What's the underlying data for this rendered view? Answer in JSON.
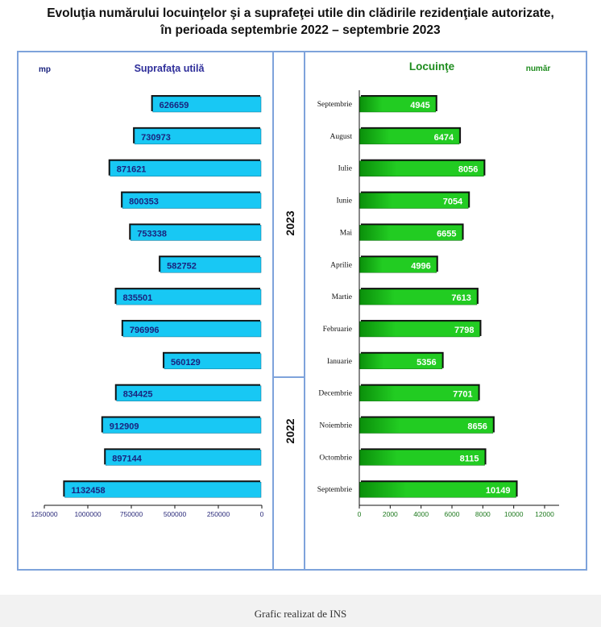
{
  "title": {
    "line1": "Evoluţia numărului locuinţelor şi a suprafeţei utile din clădirile rezidenţiale autorizate,",
    "line2": "în perioada septembrie 2022 – septembrie 2023"
  },
  "caption": "Grafic realizat de INS",
  "colors": {
    "frame": "#7ea3db",
    "cyan_bar": "#18c8f4",
    "green_bar": "#22cc22",
    "green_dark": "#0a8f0a",
    "shadow": "#111111",
    "area_value_text": "#1a237e",
    "area_title": "#2e2e9a",
    "green_title": "#1e8c1e",
    "dwelling_value_text": "#ffffff",
    "year_text": "#111111"
  },
  "chart_data": [
    {
      "type": "bar",
      "orientation": "horizontal-reversed",
      "title": "Suprafaţa utilă",
      "unit_label": "mp",
      "categories": [
        "Septembrie",
        "August",
        "Iulie",
        "Iunie",
        "Mai",
        "Aprilie",
        "Martie",
        "Februarie",
        "Ianuarie",
        "Decembrie",
        "Noiembrie",
        "Octombrie",
        "Septembrie"
      ],
      "values": [
        626659,
        730973,
        871621,
        800353,
        753338,
        582752,
        835501,
        796996,
        560129,
        834425,
        912909,
        897144,
        1132458
      ],
      "labels": [
        "626659",
        "730973",
        "871621",
        "800353",
        "753338",
        "582752",
        "835501",
        "796996",
        "560129",
        "834425",
        "912909",
        "897144",
        "1132458"
      ],
      "xlim": [
        0,
        1250000
      ],
      "ticks": [
        1250000,
        1000000,
        750000,
        500000,
        250000,
        0
      ],
      "tick_labels": [
        "1250000",
        "1000000",
        "750000",
        "500000",
        "250000",
        "0"
      ]
    },
    {
      "type": "bar",
      "orientation": "horizontal",
      "title": "Locuinţe",
      "unit_label": "număr",
      "categories": [
        "Septembrie",
        "August",
        "Iulie",
        "Iunie",
        "Mai",
        "Aprilie",
        "Martie",
        "Februarie",
        "Ianuarie",
        "Decembrie",
        "Noiembrie",
        "Octombrie",
        "Septembrie"
      ],
      "values": [
        4945,
        6474,
        8056,
        7054,
        6655,
        4996,
        7613,
        7798,
        5356,
        7701,
        8656,
        8115,
        10149
      ],
      "labels": [
        "4945",
        "6474",
        "8056",
        "7054",
        "6655",
        "4996",
        "7613",
        "7798",
        "5356",
        "7701",
        "8656",
        "8115",
        "10149"
      ],
      "xlim": [
        0,
        12000
      ],
      "ticks": [
        0,
        2000,
        4000,
        6000,
        8000,
        10000,
        12000
      ],
      "tick_labels": [
        "0",
        "2000",
        "4000",
        "6000",
        "8000",
        "10000",
        "12000"
      ]
    }
  ],
  "years": {
    "upper": "2023",
    "lower": "2022"
  }
}
